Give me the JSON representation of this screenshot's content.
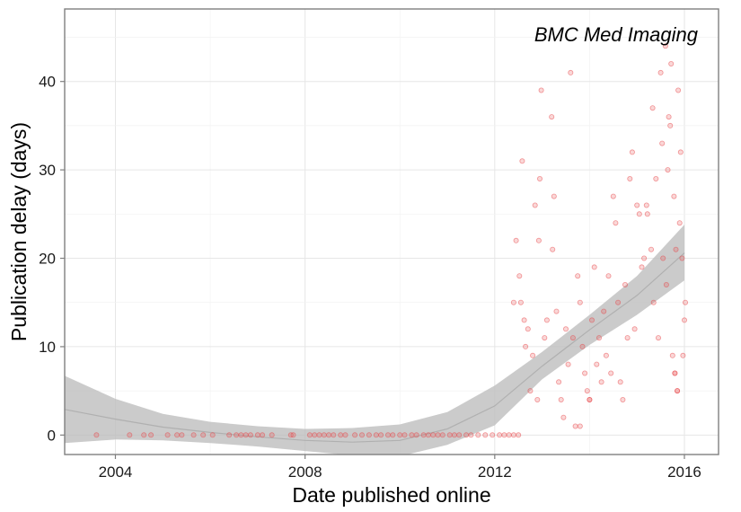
{
  "chart_data": {
    "type": "scatter",
    "title": "BMC Med Imaging",
    "xlabel": "Date published online",
    "ylabel": "Publication delay (days)",
    "xlim": [
      2002.93,
      2016.72
    ],
    "ylim": [
      -2.2,
      48.2
    ],
    "x_ticks": [
      2004,
      2008,
      2012,
      2016
    ],
    "y_ticks": [
      0,
      10,
      20,
      30,
      40
    ],
    "grid": true,
    "point_color": "#e8474b",
    "band_color": "#bdbdbd",
    "trend_color": "#b0b0b0",
    "points": [
      [
        2003.6,
        0
      ],
      [
        2004.3,
        0
      ],
      [
        2004.6,
        0
      ],
      [
        2004.75,
        0
      ],
      [
        2005.1,
        0
      ],
      [
        2005.3,
        0
      ],
      [
        2005.4,
        0
      ],
      [
        2005.65,
        0
      ],
      [
        2005.85,
        0
      ],
      [
        2006.05,
        0
      ],
      [
        2006.4,
        0
      ],
      [
        2006.55,
        0
      ],
      [
        2006.65,
        0
      ],
      [
        2006.75,
        0
      ],
      [
        2006.85,
        0
      ],
      [
        2007.0,
        0
      ],
      [
        2007.1,
        0
      ],
      [
        2007.3,
        0
      ],
      [
        2007.7,
        0
      ],
      [
        2007.75,
        0
      ],
      [
        2008.1,
        0
      ],
      [
        2008.2,
        0
      ],
      [
        2008.3,
        0
      ],
      [
        2008.4,
        0
      ],
      [
        2008.5,
        0
      ],
      [
        2008.6,
        0
      ],
      [
        2008.75,
        0
      ],
      [
        2008.85,
        0
      ],
      [
        2009.05,
        0
      ],
      [
        2009.2,
        0
      ],
      [
        2009.35,
        0
      ],
      [
        2009.5,
        0
      ],
      [
        2009.6,
        0
      ],
      [
        2009.75,
        0
      ],
      [
        2009.85,
        0
      ],
      [
        2010.0,
        0
      ],
      [
        2010.1,
        0
      ],
      [
        2010.25,
        0
      ],
      [
        2010.35,
        0
      ],
      [
        2010.5,
        0
      ],
      [
        2010.6,
        0
      ],
      [
        2010.7,
        0
      ],
      [
        2010.8,
        0
      ],
      [
        2010.9,
        0
      ],
      [
        2011.05,
        0
      ],
      [
        2011.15,
        0
      ],
      [
        2011.25,
        0
      ],
      [
        2011.4,
        0
      ],
      [
        2011.5,
        0
      ],
      [
        2011.65,
        0
      ],
      [
        2011.8,
        0
      ],
      [
        2011.95,
        0
      ],
      [
        2012.1,
        0
      ],
      [
        2012.2,
        0
      ],
      [
        2012.3,
        0
      ],
      [
        2012.4,
        0
      ],
      [
        2012.5,
        0
      ],
      [
        2012.45,
        22
      ],
      [
        2012.4,
        15
      ],
      [
        2012.55,
        15
      ],
      [
        2012.52,
        18
      ],
      [
        2012.58,
        31
      ],
      [
        2012.62,
        13
      ],
      [
        2012.65,
        10
      ],
      [
        2012.7,
        12
      ],
      [
        2012.75,
        5
      ],
      [
        2012.8,
        9
      ],
      [
        2012.85,
        26
      ],
      [
        2012.9,
        4
      ],
      [
        2012.95,
        29
      ],
      [
        2012.93,
        22
      ],
      [
        2012.98,
        39
      ],
      [
        2013.05,
        11
      ],
      [
        2013.1,
        13
      ],
      [
        2013.2,
        36
      ],
      [
        2013.25,
        27
      ],
      [
        2013.22,
        21
      ],
      [
        2013.3,
        14
      ],
      [
        2013.35,
        6
      ],
      [
        2013.4,
        4
      ],
      [
        2013.45,
        2
      ],
      [
        2013.5,
        12
      ],
      [
        2013.55,
        8
      ],
      [
        2013.6,
        41
      ],
      [
        2013.65,
        11
      ],
      [
        2013.7,
        1
      ],
      [
        2013.75,
        18
      ],
      [
        2013.8,
        15
      ],
      [
        2013.85,
        10
      ],
      [
        2013.9,
        7
      ],
      [
        2013.95,
        5
      ],
      [
        2014.0,
        4
      ],
      [
        2014.05,
        13
      ],
      [
        2014.1,
        19
      ],
      [
        2014.15,
        8
      ],
      [
        2014.2,
        11
      ],
      [
        2014.25,
        6
      ],
      [
        2014.3,
        14
      ],
      [
        2014.35,
        9
      ],
      [
        2014.4,
        18
      ],
      [
        2014.45,
        7
      ],
      [
        2014.5,
        27
      ],
      [
        2014.55,
        24
      ],
      [
        2014.6,
        15
      ],
      [
        2014.65,
        6
      ],
      [
        2014.7,
        4
      ],
      [
        2014.75,
        17
      ],
      [
        2014.8,
        11
      ],
      [
        2014.85,
        29
      ],
      [
        2014.9,
        32
      ],
      [
        2014.95,
        12
      ],
      [
        2015.0,
        26
      ],
      [
        2015.05,
        25
      ],
      [
        2015.1,
        19
      ],
      [
        2015.15,
        20
      ],
      [
        2015.2,
        26
      ],
      [
        2015.22,
        25
      ],
      [
        2015.3,
        21
      ],
      [
        2015.33,
        37
      ],
      [
        2015.35,
        15
      ],
      [
        2015.4,
        29
      ],
      [
        2015.45,
        11
      ],
      [
        2015.5,
        41
      ],
      [
        2015.53,
        33
      ],
      [
        2015.55,
        20
      ],
      [
        2015.6,
        44
      ],
      [
        2015.62,
        17
      ],
      [
        2015.65,
        30
      ],
      [
        2015.67,
        36
      ],
      [
        2015.7,
        35
      ],
      [
        2015.72,
        42
      ],
      [
        2015.75,
        9
      ],
      [
        2015.78,
        27
      ],
      [
        2015.8,
        7
      ],
      [
        2015.82,
        21
      ],
      [
        2015.85,
        5
      ],
      [
        2015.87,
        39
      ],
      [
        2015.9,
        24
      ],
      [
        2015.92,
        32
      ],
      [
        2015.95,
        20
      ],
      [
        2015.97,
        9
      ],
      [
        2016.0,
        13
      ],
      [
        2016.02,
        15
      ],
      [
        2013.8,
        1
      ],
      [
        2015.85,
        5
      ],
      [
        2014.0,
        4
      ],
      [
        2015.8,
        7
      ]
    ],
    "trend": {
      "x": [
        2002.93,
        2004,
        2005,
        2006,
        2007,
        2008,
        2009,
        2010,
        2011,
        2012,
        2013,
        2014,
        2015,
        2016
      ],
      "fit": [
        2.9,
        1.8,
        0.9,
        0.3,
        -0.2,
        -0.6,
        -0.8,
        -0.6,
        0.7,
        3.3,
        7.8,
        11.9,
        15.8,
        20.6
      ],
      "lower": [
        -0.9,
        -0.5,
        -0.6,
        -0.9,
        -1.3,
        -1.8,
        -2.3,
        -2.4,
        -1.1,
        1.1,
        6.3,
        10.2,
        13.6,
        17.5
      ],
      "upper": [
        6.7,
        4.1,
        2.4,
        1.5,
        1.0,
        0.7,
        0.8,
        1.2,
        2.6,
        5.6,
        9.4,
        13.6,
        18.0,
        23.8
      ]
    }
  }
}
